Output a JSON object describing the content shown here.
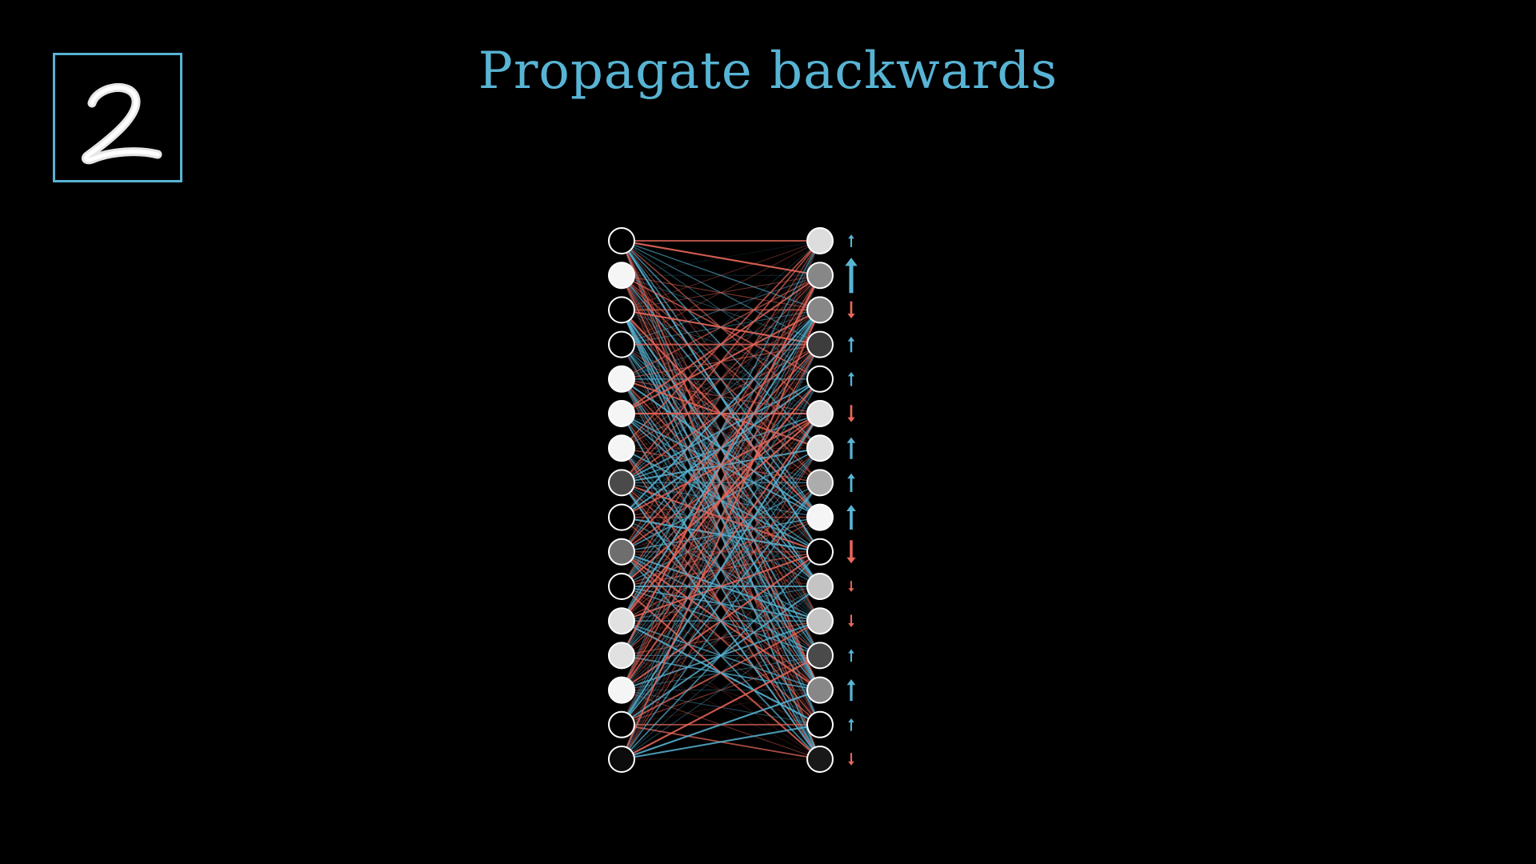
{
  "title": "Propagate backwards",
  "input_digit": "2",
  "colors": {
    "accent": "#58b4d4",
    "positive": "#58b4d4",
    "negative": "#e8675a",
    "background": "#000000",
    "neuron_stroke": "#ffffff"
  },
  "left_layer": {
    "activations": [
      0.0,
      1.0,
      0.0,
      0.0,
      1.0,
      1.0,
      1.0,
      0.3,
      0.0,
      0.45,
      0.0,
      0.92,
      0.92,
      1.0,
      0.0,
      0.05
    ]
  },
  "right_layer": {
    "activations": [
      0.9,
      0.55,
      0.55,
      0.25,
      0.0,
      0.92,
      0.92,
      0.7,
      1.0,
      0.0,
      0.8,
      0.8,
      0.3,
      0.55,
      0.0,
      0.1
    ],
    "nudges": [
      0.15,
      0.9,
      -0.3,
      0.25,
      0.2,
      -0.3,
      0.45,
      0.35,
      0.55,
      -0.5,
      -0.1,
      -0.15,
      0.15,
      0.45,
      0.15,
      -0.15
    ]
  }
}
